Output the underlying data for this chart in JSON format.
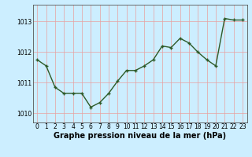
{
  "x": [
    0,
    1,
    2,
    3,
    4,
    5,
    6,
    7,
    8,
    9,
    10,
    11,
    12,
    13,
    14,
    15,
    16,
    17,
    18,
    19,
    20,
    21,
    22,
    23
  ],
  "y": [
    1011.75,
    1011.55,
    1010.85,
    1010.65,
    1010.65,
    1010.65,
    1010.2,
    1010.35,
    1010.65,
    1011.05,
    1011.4,
    1011.4,
    1011.55,
    1011.75,
    1012.2,
    1012.15,
    1012.45,
    1012.3,
    1012.0,
    1011.75,
    1011.55,
    1013.1,
    1013.05,
    1013.05
  ],
  "line_color": "#2d5a27",
  "marker": "+",
  "marker_size": 3,
  "marker_edge_width": 1.0,
  "background_color": "#cceeff",
  "grid_color_v": "#e8a0a0",
  "grid_color_h": "#e8a0a0",
  "xlabel": "Graphe pression niveau de la mer (hPa)",
  "xlabel_fontsize": 7,
  "ylim": [
    1009.7,
    1013.55
  ],
  "yticks": [
    1010,
    1011,
    1012,
    1013
  ],
  "xticks": [
    0,
    1,
    2,
    3,
    4,
    5,
    6,
    7,
    8,
    9,
    10,
    11,
    12,
    13,
    14,
    15,
    16,
    17,
    18,
    19,
    20,
    21,
    22,
    23
  ],
  "xtick_labels": [
    "0",
    "1",
    "2",
    "3",
    "4",
    "5",
    "6",
    "7",
    "8",
    "9",
    "10",
    "11",
    "12",
    "13",
    "14",
    "15",
    "16",
    "17",
    "18",
    "19",
    "20",
    "21",
    "22",
    "23"
  ],
  "tick_fontsize": 5.5,
  "line_width": 1.0,
  "xlim": [
    -0.5,
    23.5
  ]
}
